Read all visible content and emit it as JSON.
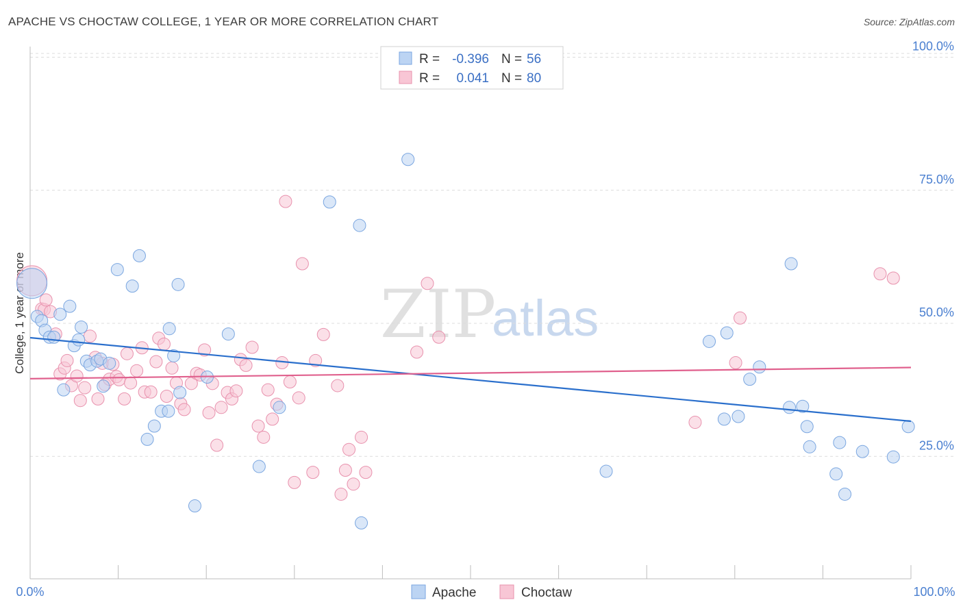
{
  "title": "APACHE VS CHOCTAW COLLEGE, 1 YEAR OR MORE CORRELATION CHART",
  "source": "Source: ZipAtlas.com",
  "watermark": {
    "zip": "ZIP",
    "atlas": "atlas"
  },
  "legend": {
    "rows": [
      {
        "r_label": "R =",
        "r_value": "-0.396",
        "n_label": "N =",
        "n_value": "56",
        "color": "#a9c8f0"
      },
      {
        "r_label": "R =",
        "r_value": "0.041",
        "n_label": "N =",
        "n_value": "80",
        "color": "#f6b8cb"
      }
    ]
  },
  "bottom_legend": [
    {
      "label": "Apache",
      "color": "#a9c8f0"
    },
    {
      "label": "Choctaw",
      "color": "#f6b8cb"
    }
  ],
  "colors": {
    "apache_fill": "#bcd4f3",
    "apache_stroke": "#7aa6e0",
    "apache_line": "#2a6fcc",
    "choctaw_fill": "#f8c6d5",
    "choctaw_stroke": "#e891ad",
    "choctaw_line": "#e0608d",
    "grid": "#dcdcdc",
    "tick_label": "#4a7fd0"
  },
  "chart_data": {
    "type": "scatter",
    "title": "APACHE VS CHOCTAW COLLEGE, 1 YEAR OR MORE CORRELATION CHART",
    "xlabel": "",
    "ylabel": "College, 1 year or more",
    "xlim": [
      0,
      100
    ],
    "ylim": [
      2,
      102
    ],
    "x_tick_labels": [
      "0.0%",
      "100.0%"
    ],
    "y_ticks": [
      25,
      50,
      75,
      100
    ],
    "y_tick_labels": [
      "25.0%",
      "50.0%",
      "75.0%",
      "100.0%"
    ],
    "grid": true,
    "legend_position": "top-center",
    "series": [
      {
        "name": "Apache",
        "r": -0.396,
        "n": 56,
        "trend": {
          "x": [
            0,
            100
          ],
          "y": [
            47.3,
            31.6
          ]
        },
        "points": [
          {
            "x": 0.2,
            "y": 57.5,
            "big": true
          },
          {
            "x": 0.8,
            "y": 51.3
          },
          {
            "x": 1.3,
            "y": 50.5
          },
          {
            "x": 1.7,
            "y": 48.7
          },
          {
            "x": 2.2,
            "y": 47.4
          },
          {
            "x": 2.7,
            "y": 47.4
          },
          {
            "x": 3.4,
            "y": 51.7
          },
          {
            "x": 3.8,
            "y": 37.5
          },
          {
            "x": 4.5,
            "y": 53.2
          },
          {
            "x": 5.0,
            "y": 45.8
          },
          {
            "x": 5.5,
            "y": 46.9
          },
          {
            "x": 5.8,
            "y": 49.3
          },
          {
            "x": 6.4,
            "y": 42.9
          },
          {
            "x": 6.8,
            "y": 42.2
          },
          {
            "x": 7.6,
            "y": 42.9
          },
          {
            "x": 8.0,
            "y": 43.3
          },
          {
            "x": 8.3,
            "y": 38.2
          },
          {
            "x": 9.0,
            "y": 42.5
          },
          {
            "x": 9.9,
            "y": 60.1
          },
          {
            "x": 11.6,
            "y": 57.0
          },
          {
            "x": 12.4,
            "y": 62.7
          },
          {
            "x": 13.3,
            "y": 28.2
          },
          {
            "x": 14.1,
            "y": 30.7
          },
          {
            "x": 14.9,
            "y": 33.5
          },
          {
            "x": 15.7,
            "y": 33.5
          },
          {
            "x": 15.8,
            "y": 49.0
          },
          {
            "x": 16.3,
            "y": 43.9
          },
          {
            "x": 16.8,
            "y": 57.3
          },
          {
            "x": 17.0,
            "y": 37.0
          },
          {
            "x": 18.7,
            "y": 15.7
          },
          {
            "x": 20.1,
            "y": 39.9
          },
          {
            "x": 22.5,
            "y": 48.0
          },
          {
            "x": 26.0,
            "y": 23.1
          },
          {
            "x": 28.3,
            "y": 34.2
          },
          {
            "x": 34.0,
            "y": 72.8
          },
          {
            "x": 37.4,
            "y": 68.4
          },
          {
            "x": 37.6,
            "y": 12.5
          },
          {
            "x": 42.9,
            "y": 80.8
          },
          {
            "x": 65.4,
            "y": 22.2
          },
          {
            "x": 77.1,
            "y": 46.6
          },
          {
            "x": 78.8,
            "y": 32.0
          },
          {
            "x": 79.1,
            "y": 48.2
          },
          {
            "x": 80.4,
            "y": 32.5
          },
          {
            "x": 81.7,
            "y": 39.5
          },
          {
            "x": 82.8,
            "y": 41.8
          },
          {
            "x": 86.2,
            "y": 34.2
          },
          {
            "x": 86.4,
            "y": 61.2
          },
          {
            "x": 87.7,
            "y": 34.4
          },
          {
            "x": 88.2,
            "y": 30.6
          },
          {
            "x": 88.5,
            "y": 26.8
          },
          {
            "x": 91.5,
            "y": 21.7
          },
          {
            "x": 91.9,
            "y": 27.6
          },
          {
            "x": 92.5,
            "y": 17.9
          },
          {
            "x": 94.5,
            "y": 25.9
          },
          {
            "x": 98.0,
            "y": 24.9
          },
          {
            "x": 99.7,
            "y": 30.6
          }
        ]
      },
      {
        "name": "Choctaw",
        "r": 0.041,
        "n": 80,
        "trend": {
          "x": [
            0,
            100
          ],
          "y": [
            39.6,
            41.7
          ]
        },
        "points": [
          {
            "x": 0.2,
            "y": 58.0,
            "big": true
          },
          {
            "x": 1.3,
            "y": 52.7
          },
          {
            "x": 1.6,
            "y": 52.6
          },
          {
            "x": 1.8,
            "y": 54.4
          },
          {
            "x": 2.3,
            "y": 52.2
          },
          {
            "x": 2.9,
            "y": 48.0
          },
          {
            "x": 3.4,
            "y": 40.5
          },
          {
            "x": 3.9,
            "y": 41.6
          },
          {
            "x": 4.2,
            "y": 43.0
          },
          {
            "x": 4.7,
            "y": 38.3
          },
          {
            "x": 5.3,
            "y": 40.1
          },
          {
            "x": 5.7,
            "y": 35.5
          },
          {
            "x": 6.2,
            "y": 37.9
          },
          {
            "x": 6.8,
            "y": 47.6
          },
          {
            "x": 7.4,
            "y": 43.6
          },
          {
            "x": 7.7,
            "y": 35.8
          },
          {
            "x": 8.2,
            "y": 42.5
          },
          {
            "x": 8.5,
            "y": 38.5
          },
          {
            "x": 9.0,
            "y": 39.5
          },
          {
            "x": 9.4,
            "y": 42.3
          },
          {
            "x": 9.8,
            "y": 40.0
          },
          {
            "x": 10.1,
            "y": 39.4
          },
          {
            "x": 10.7,
            "y": 35.8
          },
          {
            "x": 11.0,
            "y": 44.3
          },
          {
            "x": 11.4,
            "y": 38.8
          },
          {
            "x": 12.1,
            "y": 41.1
          },
          {
            "x": 12.7,
            "y": 45.4
          },
          {
            "x": 13.0,
            "y": 37.1
          },
          {
            "x": 13.7,
            "y": 37.1
          },
          {
            "x": 14.3,
            "y": 42.8
          },
          {
            "x": 14.6,
            "y": 47.2
          },
          {
            "x": 15.2,
            "y": 46.1
          },
          {
            "x": 15.5,
            "y": 36.3
          },
          {
            "x": 16.1,
            "y": 41.6
          },
          {
            "x": 16.6,
            "y": 38.8
          },
          {
            "x": 17.1,
            "y": 34.9
          },
          {
            "x": 17.5,
            "y": 33.8
          },
          {
            "x": 18.3,
            "y": 38.7
          },
          {
            "x": 18.9,
            "y": 40.6
          },
          {
            "x": 19.3,
            "y": 40.3
          },
          {
            "x": 19.8,
            "y": 45.0
          },
          {
            "x": 20.3,
            "y": 33.2
          },
          {
            "x": 20.7,
            "y": 38.7
          },
          {
            "x": 21.2,
            "y": 27.1
          },
          {
            "x": 21.7,
            "y": 34.2
          },
          {
            "x": 22.4,
            "y": 37.0
          },
          {
            "x": 22.9,
            "y": 35.8
          },
          {
            "x": 23.4,
            "y": 37.3
          },
          {
            "x": 23.9,
            "y": 43.2
          },
          {
            "x": 24.5,
            "y": 42.1
          },
          {
            "x": 25.2,
            "y": 45.5
          },
          {
            "x": 25.9,
            "y": 30.7
          },
          {
            "x": 26.5,
            "y": 28.6
          },
          {
            "x": 27.0,
            "y": 37.5
          },
          {
            "x": 27.5,
            "y": 32.0
          },
          {
            "x": 28.0,
            "y": 34.8
          },
          {
            "x": 28.6,
            "y": 42.6
          },
          {
            "x": 29.0,
            "y": 72.9
          },
          {
            "x": 29.5,
            "y": 39.0
          },
          {
            "x": 30.0,
            "y": 20.1
          },
          {
            "x": 30.5,
            "y": 36.0
          },
          {
            "x": 30.9,
            "y": 61.2
          },
          {
            "x": 32.1,
            "y": 22.0
          },
          {
            "x": 32.4,
            "y": 43.0
          },
          {
            "x": 33.3,
            "y": 47.9
          },
          {
            "x": 34.9,
            "y": 38.3
          },
          {
            "x": 35.3,
            "y": 17.9
          },
          {
            "x": 35.8,
            "y": 22.4
          },
          {
            "x": 36.2,
            "y": 26.3
          },
          {
            "x": 36.7,
            "y": 19.8
          },
          {
            "x": 37.6,
            "y": 28.6
          },
          {
            "x": 38.1,
            "y": 22.0
          },
          {
            "x": 43.9,
            "y": 44.6
          },
          {
            "x": 45.1,
            "y": 57.5
          },
          {
            "x": 46.4,
            "y": 47.4
          },
          {
            "x": 75.5,
            "y": 31.4
          },
          {
            "x": 80.1,
            "y": 42.6
          },
          {
            "x": 80.6,
            "y": 51.0
          },
          {
            "x": 96.5,
            "y": 59.3
          },
          {
            "x": 98.0,
            "y": 58.5
          }
        ]
      }
    ]
  }
}
